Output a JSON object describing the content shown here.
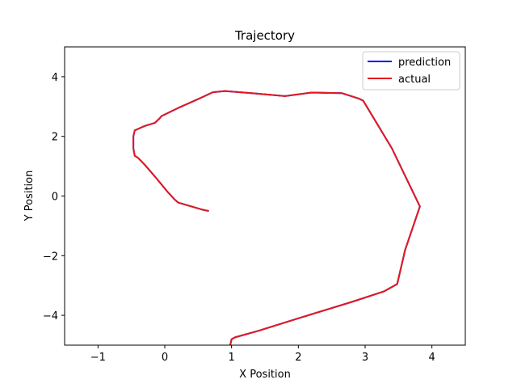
{
  "chart_data": {
    "type": "line",
    "title": "Trajectory",
    "xlabel": "X Position",
    "ylabel": "Y Position",
    "xlim": [
      -1.5,
      4.5
    ],
    "ylim": [
      -5,
      5
    ],
    "x_ticks": [
      -1,
      0,
      1,
      2,
      3,
      4
    ],
    "y_ticks": [
      -4,
      -2,
      0,
      2,
      4
    ],
    "x_tick_labels": [
      "−1",
      "0",
      "1",
      "2",
      "3",
      "4"
    ],
    "y_tick_labels": [
      "−4",
      "−2",
      "0",
      "2",
      "4"
    ],
    "grid": false,
    "legend": "upper-right",
    "series": [
      {
        "name": "prediction",
        "color": "#0000ff",
        "x": [
          0.65,
          0.55,
          0.4,
          0.2,
          0.14,
          0.05,
          -0.12,
          -0.3,
          -0.4,
          -0.45,
          -0.47,
          -0.47,
          -0.45,
          -0.4,
          -0.3,
          -0.15,
          -0.08,
          -0.05,
          0.2,
          0.5,
          0.72,
          0.9,
          1.3,
          1.8,
          2.2,
          2.65,
          2.9,
          2.97,
          3.4,
          3.82,
          3.6,
          3.48,
          3.28,
          2.8,
          2.0,
          1.4,
          1.05,
          1.0,
          0.98
        ],
        "y": [
          -0.5,
          -0.45,
          -0.35,
          -0.22,
          -0.1,
          0.12,
          0.58,
          1.05,
          1.28,
          1.35,
          1.6,
          2.0,
          2.2,
          2.25,
          2.35,
          2.45,
          2.6,
          2.68,
          2.95,
          3.25,
          3.48,
          3.52,
          3.45,
          3.35,
          3.47,
          3.45,
          3.27,
          3.2,
          1.6,
          -0.35,
          -1.8,
          -2.95,
          -3.2,
          -3.55,
          -4.1,
          -4.52,
          -4.74,
          -4.8,
          -5.0
        ]
      },
      {
        "name": "actual",
        "color": "#e31a1c",
        "x": [
          0.65,
          0.55,
          0.4,
          0.2,
          0.14,
          0.05,
          -0.12,
          -0.3,
          -0.4,
          -0.45,
          -0.47,
          -0.47,
          -0.45,
          -0.4,
          -0.3,
          -0.15,
          -0.08,
          -0.05,
          0.2,
          0.5,
          0.72,
          0.9,
          1.3,
          1.8,
          2.2,
          2.65,
          2.9,
          2.97,
          3.4,
          3.82,
          3.6,
          3.48,
          3.28,
          2.8,
          2.0,
          1.4,
          1.05,
          1.0,
          0.98
        ],
        "y": [
          -0.5,
          -0.45,
          -0.35,
          -0.22,
          -0.1,
          0.12,
          0.58,
          1.05,
          1.28,
          1.35,
          1.6,
          2.0,
          2.2,
          2.25,
          2.35,
          2.45,
          2.6,
          2.68,
          2.95,
          3.25,
          3.48,
          3.52,
          3.45,
          3.35,
          3.47,
          3.45,
          3.27,
          3.2,
          1.6,
          -0.35,
          -1.8,
          -2.95,
          -3.2,
          -3.55,
          -4.1,
          -4.52,
          -4.74,
          -4.8,
          -5.0
        ]
      }
    ]
  }
}
